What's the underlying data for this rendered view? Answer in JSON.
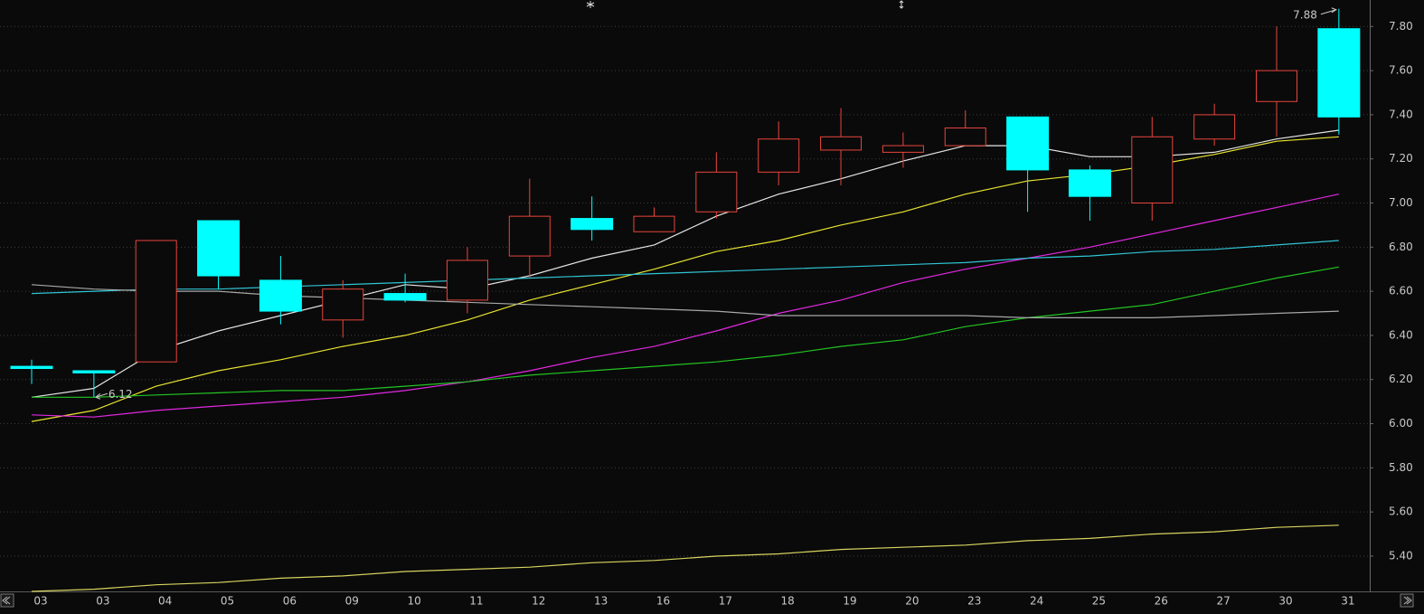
{
  "chart_data": {
    "type": "candlestick",
    "categories": [
      "03",
      "03",
      "04",
      "05",
      "06",
      "09",
      "10",
      "11",
      "12",
      "13",
      "16",
      "17",
      "18",
      "19",
      "20",
      "23",
      "24",
      "25",
      "26",
      "27",
      "30",
      "31"
    ],
    "open": [
      6.26,
      6.24,
      6.28,
      6.92,
      6.65,
      6.47,
      6.59,
      6.56,
      6.76,
      6.93,
      6.87,
      6.96,
      7.14,
      7.24,
      7.23,
      7.26,
      7.39,
      7.15,
      7.0,
      7.29,
      7.46,
      7.79
    ],
    "high": [
      6.29,
      6.24,
      6.83,
      6.92,
      6.76,
      6.65,
      6.68,
      6.8,
      7.11,
      7.03,
      6.98,
      7.23,
      7.37,
      7.43,
      7.32,
      7.42,
      7.39,
      7.17,
      7.39,
      7.45,
      7.8,
      7.88
    ],
    "low": [
      6.18,
      6.12,
      6.28,
      6.61,
      6.45,
      6.39,
      6.55,
      6.5,
      6.66,
      6.83,
      6.87,
      6.93,
      7.08,
      7.08,
      7.16,
      7.26,
      6.96,
      6.92,
      6.92,
      7.26,
      7.3,
      7.31
    ],
    "close": [
      6.25,
      6.23,
      6.83,
      6.67,
      6.51,
      6.61,
      6.56,
      6.74,
      6.94,
      6.88,
      6.94,
      7.14,
      7.29,
      7.3,
      7.26,
      7.34,
      7.15,
      7.03,
      7.3,
      7.4,
      7.6,
      7.39
    ],
    "up_color": "#e8453c",
    "down_color": "#00ffff",
    "ma_lines": [
      {
        "color": "#e6e6e6",
        "values": [
          6.12,
          6.16,
          6.33,
          6.42,
          6.49,
          6.56,
          6.63,
          6.61,
          6.67,
          6.75,
          6.81,
          6.94,
          7.04,
          7.11,
          7.19,
          7.26,
          7.26,
          7.21,
          7.21,
          7.23,
          7.29,
          7.33
        ]
      },
      {
        "color": "#e8e430",
        "values": [
          6.01,
          6.06,
          6.17,
          6.24,
          6.29,
          6.35,
          6.4,
          6.47,
          6.56,
          6.63,
          6.7,
          6.78,
          6.83,
          6.9,
          6.96,
          7.04,
          7.1,
          7.13,
          7.17,
          7.22,
          7.28,
          7.3
        ]
      },
      {
        "color": "#e028e0",
        "values": [
          6.04,
          6.03,
          6.06,
          6.08,
          6.1,
          6.12,
          6.15,
          6.19,
          6.24,
          6.3,
          6.35,
          6.42,
          6.5,
          6.56,
          6.64,
          6.7,
          6.75,
          6.8,
          6.86,
          6.92,
          6.98,
          7.04
        ]
      },
      {
        "color": "#22c422",
        "values": [
          6.12,
          6.12,
          6.13,
          6.14,
          6.15,
          6.15,
          6.17,
          6.19,
          6.22,
          6.24,
          6.26,
          6.28,
          6.31,
          6.35,
          6.38,
          6.44,
          6.48,
          6.51,
          6.54,
          6.6,
          6.66,
          6.71
        ]
      },
      {
        "color": "#30c4d4",
        "values": [
          6.59,
          6.6,
          6.61,
          6.61,
          6.62,
          6.63,
          6.64,
          6.65,
          6.66,
          6.67,
          6.68,
          6.69,
          6.7,
          6.71,
          6.72,
          6.73,
          6.75,
          6.76,
          6.78,
          6.79,
          6.81,
          6.83
        ]
      },
      {
        "color": "#a8a8a8",
        "values": [
          6.63,
          6.61,
          6.6,
          6.6,
          6.58,
          6.57,
          6.56,
          6.55,
          6.54,
          6.53,
          6.52,
          6.51,
          6.49,
          6.49,
          6.49,
          6.49,
          6.48,
          6.48,
          6.48,
          6.49,
          6.5,
          6.51
        ]
      },
      {
        "color": "#d8d460",
        "values": [
          5.24,
          5.25,
          5.27,
          5.28,
          5.3,
          5.31,
          5.33,
          5.34,
          5.35,
          5.37,
          5.38,
          5.4,
          5.41,
          5.43,
          5.44,
          5.45,
          5.47,
          5.48,
          5.5,
          5.51,
          5.53,
          5.54
        ]
      }
    ],
    "annotations": [
      "7.88",
      "6.12"
    ],
    "ylim": [
      5.24,
      7.92
    ],
    "yticks": [
      {
        "value": 5.4,
        "label": "5.40"
      },
      {
        "value": 5.6,
        "label": "5.60"
      },
      {
        "value": 5.8,
        "label": "5.80"
      },
      {
        "value": 6,
        "label": "6.00"
      },
      {
        "value": 6.2,
        "label": "6.20"
      },
      {
        "value": 6.4,
        "label": "6.40"
      },
      {
        "value": 6.6,
        "label": "6.60"
      },
      {
        "value": 6.8,
        "label": "6.80"
      },
      {
        "value": 7,
        "label": "7.00"
      },
      {
        "value": 7.2,
        "label": "7.20"
      },
      {
        "value": 7.4,
        "label": "7.40"
      },
      {
        "value": 7.6,
        "label": "7.60"
      },
      {
        "value": 7.8,
        "label": "7.80"
      }
    ],
    "grid": true
  }
}
